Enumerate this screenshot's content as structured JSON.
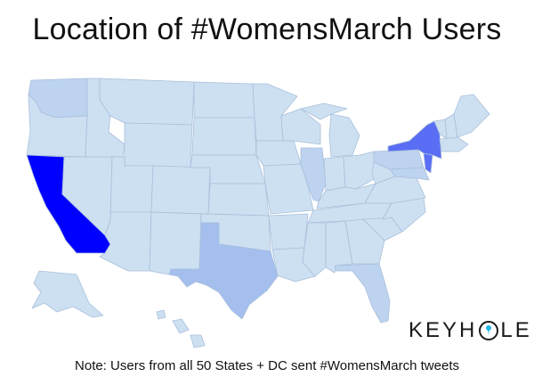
{
  "title": "Location of #WomensMarch Users",
  "note": "Note: Users from all 50 States + DC sent #WomensMarch tweets",
  "logo": {
    "part1": "KEYH",
    "part2": "LE"
  },
  "colors": {
    "base": "#cde0f2",
    "light": "#bdd3ef",
    "medium": "#a4bfee",
    "high": "#5a6ef5",
    "highest": "#0000ff",
    "border": "#a8bfda",
    "logo_accent": "#1fb6e8"
  },
  "map_legend_levels": {
    "california": "highest",
    "new-york": "high",
    "texas": "medium",
    "florida": "light",
    "illinois": "light",
    "washington": "light",
    "new-jersey": "high",
    "pennsylvania": "light",
    "other-states": "base"
  }
}
